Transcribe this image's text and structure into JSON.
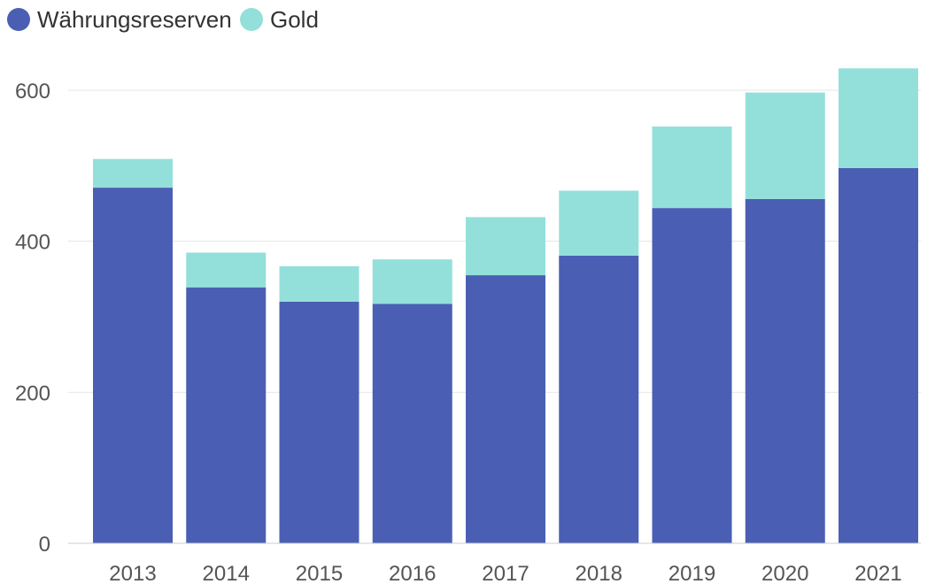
{
  "chart_data": {
    "type": "bar",
    "stacked": true,
    "title": "",
    "xlabel": "",
    "ylabel": "",
    "categories": [
      "2013",
      "2014",
      "2015",
      "2016",
      "2017",
      "2018",
      "2019",
      "2020",
      "2021"
    ],
    "series": [
      {
        "name": "Währungsreserven",
        "color": "#4a5fb4",
        "values": [
          471,
          339,
          320,
          317,
          355,
          381,
          444,
          456,
          497
        ]
      },
      {
        "name": "Gold",
        "color": "#93e0da",
        "values": [
          38,
          46,
          47,
          59,
          77,
          86,
          108,
          141,
          132
        ]
      }
    ],
    "ylim": [
      0,
      640
    ],
    "yticks": [
      0,
      200,
      400,
      600
    ],
    "grid": true,
    "legend_position": "top-left"
  }
}
